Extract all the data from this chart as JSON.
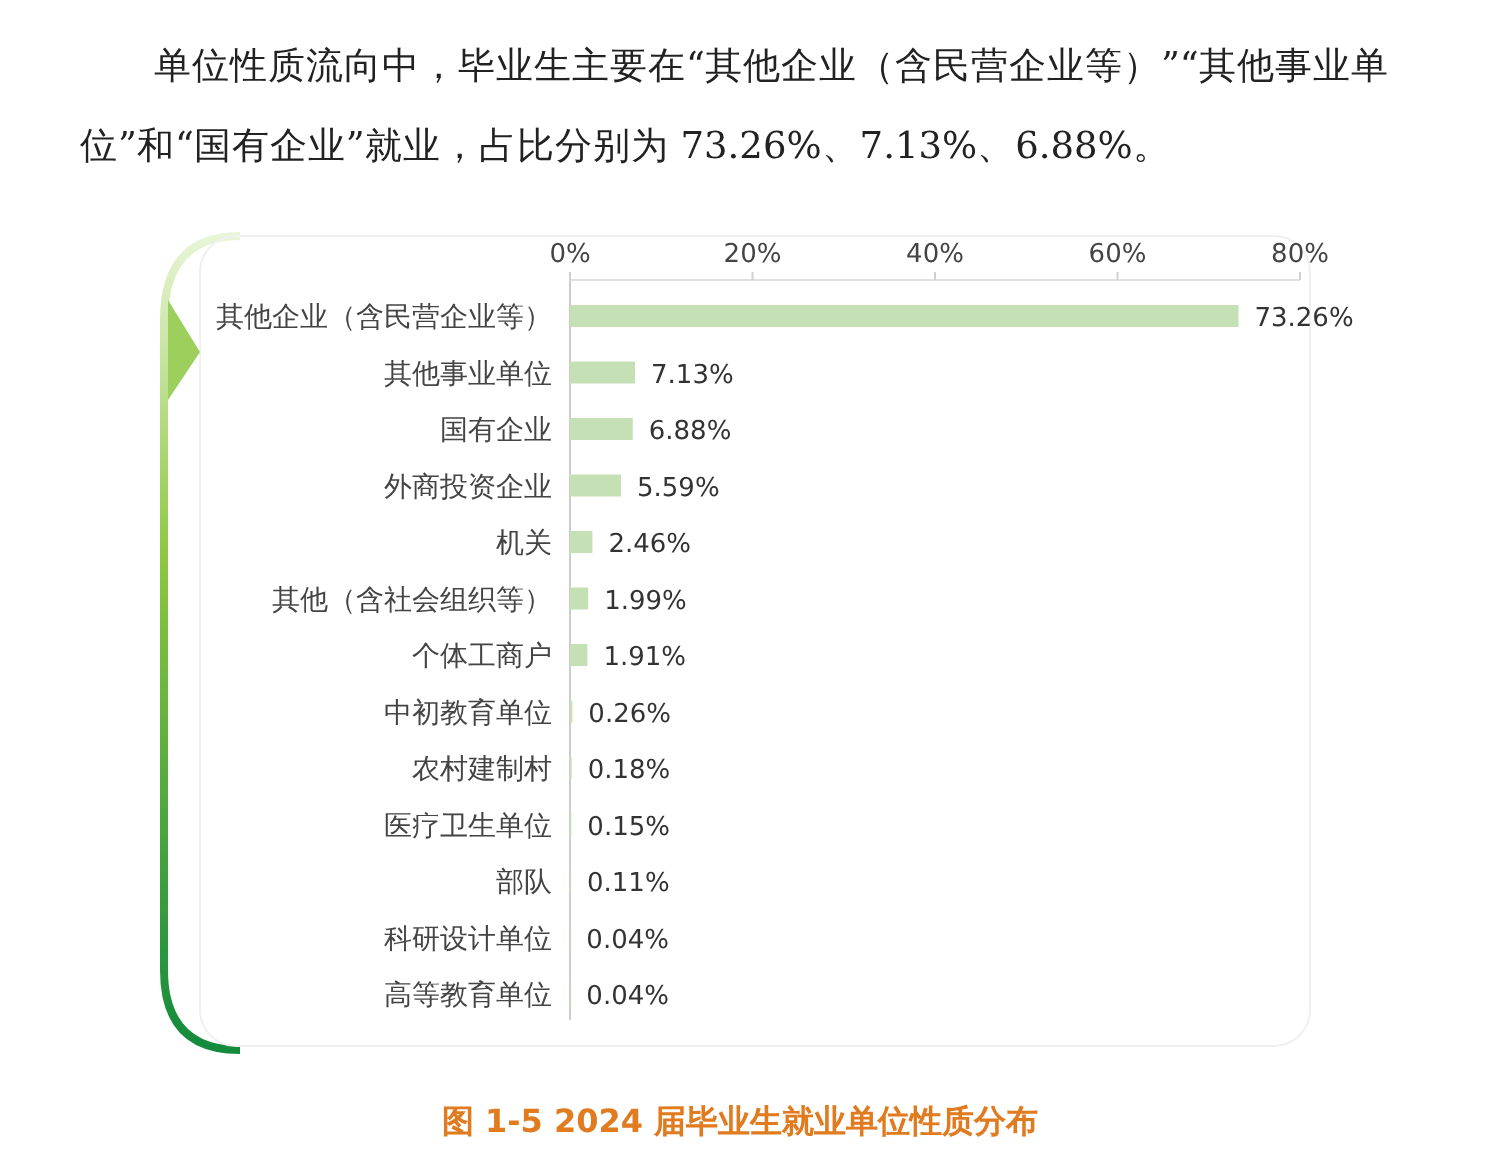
{
  "chart_data": {
    "type": "bar",
    "orientation": "horizontal",
    "title": "图 1-5  2024 届毕业生就业单位性质分布",
    "annotations": [
      "单位性质流向中，毕业生主要在“其他企业（含民营企业等）”“其他事业单位”和“国有企业”就业，占比分别为 73.26%、7.13%、6.88%。"
    ],
    "categories": [
      "其他企业（含民营企业等）",
      "其他事业单位",
      "国有企业",
      "外商投资企业",
      "机关",
      "其他（含社会组织等）",
      "个体工商户",
      "中初教育单位",
      "农村建制村",
      "医疗卫生单位",
      "部队",
      "科研设计单位",
      "高等教育单位"
    ],
    "values": [
      73.26,
      7.13,
      6.88,
      5.59,
      2.46,
      1.99,
      1.91,
      0.26,
      0.18,
      0.15,
      0.11,
      0.04,
      0.04
    ],
    "value_labels": [
      "73.26%",
      "7.13%",
      "6.88%",
      "5.59%",
      "2.46%",
      "1.99%",
      "1.91%",
      "0.26%",
      "0.18%",
      "0.15%",
      "0.11%",
      "0.04%",
      "0.04%"
    ],
    "color": "#c5e0b4",
    "xlim": [
      0,
      80
    ],
    "xticks": [
      {
        "value": 0,
        "label": "0%"
      },
      {
        "value": 20,
        "label": "20%"
      },
      {
        "value": 40,
        "label": "40%"
      },
      {
        "value": 60,
        "label": "60%"
      },
      {
        "value": 80,
        "label": "80%"
      }
    ],
    "grid": false
  }
}
